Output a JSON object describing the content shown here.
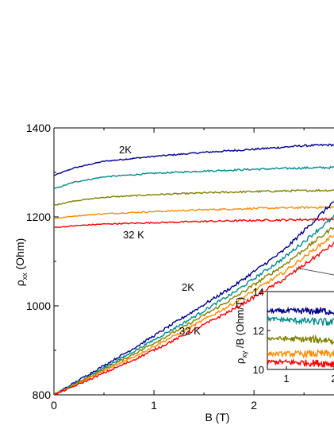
{
  "chart_data": [
    {
      "type": "line",
      "xlabel": "B (T)",
      "ylabel_main": "ρ",
      "ylabel_sub": "xx",
      "ylabel_unit": " (Ohm)",
      "xlim": [
        0,
        2.8
      ],
      "ylim": [
        800,
        1400
      ],
      "xticks": [
        0,
        1,
        2
      ],
      "yticks": [
        800,
        1000,
        1200,
        1400
      ],
      "annotations": [
        "2K",
        "32 K",
        "2K",
        "32 K"
      ],
      "series_colors": [
        "#00008b",
        "#008b8b",
        "#808000",
        "#ff8c00",
        "#ff0000"
      ],
      "rho_xx": [
        {
          "x": [
            0,
            0.2,
            0.5,
            1.0,
            1.5,
            2.0,
            2.5,
            2.8
          ],
          "y": [
            1293,
            1310,
            1325,
            1336,
            1345,
            1352,
            1360,
            1362
          ]
        },
        {
          "x": [
            0,
            0.2,
            0.5,
            1.0,
            1.5,
            2.0,
            2.5,
            2.8
          ],
          "y": [
            1263,
            1278,
            1290,
            1298,
            1303,
            1307,
            1310,
            1311
          ]
        },
        {
          "x": [
            0,
            0.2,
            0.5,
            1.0,
            1.5,
            2.0,
            2.5,
            2.8
          ],
          "y": [
            1226,
            1236,
            1244,
            1250,
            1254,
            1257,
            1259,
            1260
          ]
        },
        {
          "x": [
            0,
            0.2,
            0.5,
            1.0,
            1.5,
            2.0,
            2.5,
            2.8
          ],
          "y": [
            1196,
            1202,
            1207,
            1212,
            1216,
            1219,
            1221,
            1222
          ]
        },
        {
          "x": [
            0,
            0.2,
            0.5,
            1.0,
            1.5,
            2.0,
            2.5,
            2.8
          ],
          "y": [
            1176,
            1180,
            1184,
            1187,
            1190,
            1192,
            1194,
            1195
          ]
        }
      ],
      "rho_xy": [
        {
          "x": [
            0,
            0.3,
            0.8,
            1.3,
            1.8,
            2.3,
            2.8
          ],
          "y": [
            800,
            840,
            905,
            975,
            1045,
            1125,
            1235
          ]
        },
        {
          "x": [
            0,
            0.3,
            0.8,
            1.3,
            1.8,
            2.3,
            2.8
          ],
          "y": [
            800,
            836,
            898,
            962,
            1030,
            1108,
            1200
          ]
        },
        {
          "x": [
            0,
            0.3,
            0.8,
            1.3,
            1.8,
            2.3,
            2.8
          ],
          "y": [
            800,
            834,
            892,
            953,
            1018,
            1092,
            1178
          ]
        },
        {
          "x": [
            0,
            0.3,
            0.8,
            1.3,
            1.8,
            2.3,
            2.8
          ],
          "y": [
            800,
            832,
            886,
            944,
            1006,
            1076,
            1160
          ]
        },
        {
          "x": [
            0,
            0.3,
            0.8,
            1.3,
            1.8,
            2.3,
            2.8
          ],
          "y": [
            800,
            829,
            879,
            934,
            993,
            1060,
            1140
          ]
        }
      ]
    },
    {
      "type": "line",
      "name": "inset",
      "ylabel_main": "ρ",
      "ylabel_sub": "xy",
      "ylabel_unit": " /B (Ohm/T)",
      "xlim": [
        0.6,
        2.0
      ],
      "ylim": [
        10,
        14
      ],
      "xticks": [
        1,
        2
      ],
      "yticks": [
        10,
        12,
        14
      ],
      "series": [
        {
          "x": [
            0.6,
            2.0
          ],
          "y": [
            13.0,
            13.0
          ]
        },
        {
          "x": [
            0.6,
            2.0
          ],
          "y": [
            12.6,
            12.4
          ]
        },
        {
          "x": [
            0.6,
            2.0
          ],
          "y": [
            11.6,
            11.5
          ]
        },
        {
          "x": [
            0.6,
            2.0
          ],
          "y": [
            10.8,
            10.8
          ]
        },
        {
          "x": [
            0.6,
            2.0
          ],
          "y": [
            10.4,
            10.3
          ]
        }
      ]
    }
  ]
}
